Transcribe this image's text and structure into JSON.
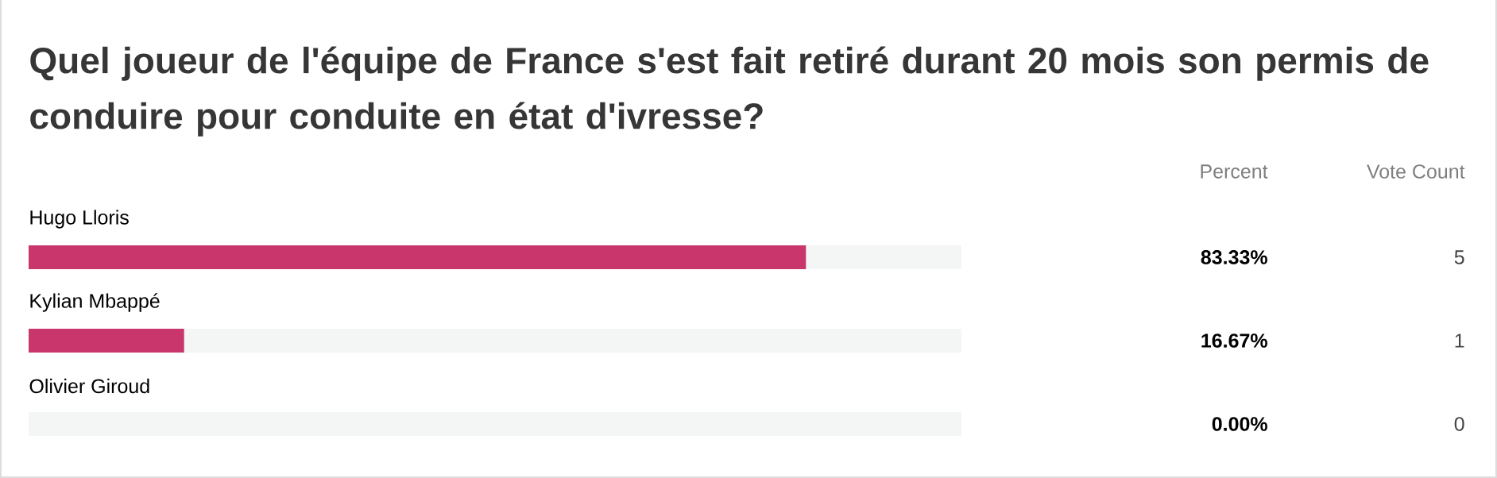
{
  "chart_data": {
    "type": "bar",
    "orientation": "horizontal",
    "stacked": true,
    "title": "Quel joueur de l'équipe de France s'est fait retiré durant 20 mois son permis de conduire pour conduite en état d'ivresse?",
    "categories": [
      "Hugo Lloris",
      "Kylian Mbappé",
      "Olivier Giroud"
    ],
    "series": [
      {
        "color": "#c8366b",
        "values": [
          83.33,
          16.67,
          0
        ],
        "value_labels": [
          "83.33%",
          "16.67%",
          "0.00%"
        ]
      },
      {
        "color": "#f4f5f5",
        "values": [
          16.67,
          83.33,
          100
        ]
      }
    ],
    "xlim": [
      0,
      100
    ],
    "annotations": [
      "Percent",
      "Vote Count",
      "5",
      "1",
      "0"
    ]
  }
}
